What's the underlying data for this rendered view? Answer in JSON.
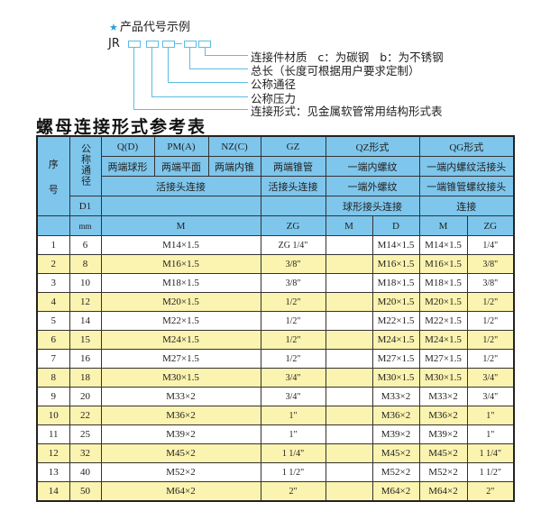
{
  "code_example": {
    "title": "产品代号示例",
    "prefix": "JR",
    "labels": [
      "连接件材质   c：为碳钢   b：为不锈钢",
      "总长（长度可根据用户要求定制）",
      "公称通径",
      "公称压力",
      "连接形式：见金属软管常用结构形式表"
    ]
  },
  "table_title": "螺母连接形式参考表",
  "header": {
    "seq": "序\n\n号",
    "dn": "公称通径",
    "q": "Q(D)",
    "pm": "PM(A)",
    "nz": "NZ(C)",
    "gz": "GZ",
    "qz": "QZ形式",
    "qg": "QG形式",
    "q_desc": "两端球形",
    "pm_desc": "两端平面",
    "nz_desc": "两端内锥",
    "gz_desc": "两端锥管",
    "qz_desc1": "一端内螺纹",
    "qg_desc1": "一端内螺纹活接头",
    "conn": "活接头连接",
    "gz_conn": "活接头连接",
    "qz_desc2": "一端外螺纹",
    "qg_desc2": "一端锥管螺纹接头",
    "d1": "D1",
    "qz_desc3": "球形接头连接",
    "qg_desc3": "连接",
    "mm": "mm",
    "m": "M",
    "zg": "ZG",
    "qz_m": "M",
    "qz_d": "D",
    "qg_m": "M",
    "qg_zg": "ZG"
  },
  "rows": [
    {
      "no": "1",
      "dn": "6",
      "m": "M14×1.5",
      "zg": "ZG 1/4\"",
      "qz_m": "",
      "qz_d": "M14×1.5",
      "qg_m": "M14×1.5",
      "qg_zg": "1/4\""
    },
    {
      "no": "2",
      "dn": "8",
      "m": "M16×1.5",
      "zg": "3/8\"",
      "qz_m": "",
      "qz_d": "M16×1.5",
      "qg_m": "M16×1.5",
      "qg_zg": "3/8\""
    },
    {
      "no": "3",
      "dn": "10",
      "m": "M18×1.5",
      "zg": "3/8\"",
      "qz_m": "",
      "qz_d": "M18×1.5",
      "qg_m": "M18×1.5",
      "qg_zg": "3/8\""
    },
    {
      "no": "4",
      "dn": "12",
      "m": "M20×1.5",
      "zg": "1/2\"",
      "qz_m": "",
      "qz_d": "M20×1.5",
      "qg_m": "M20×1.5",
      "qg_zg": "1/2\""
    },
    {
      "no": "5",
      "dn": "14",
      "m": "M22×1.5",
      "zg": "1/2\"",
      "qz_m": "",
      "qz_d": "M22×1.5",
      "qg_m": "M22×1.5",
      "qg_zg": "1/2\""
    },
    {
      "no": "6",
      "dn": "15",
      "m": "M24×1.5",
      "zg": "1/2\"",
      "qz_m": "",
      "qz_d": "M24×1.5",
      "qg_m": "M24×1.5",
      "qg_zg": "1/2\""
    },
    {
      "no": "7",
      "dn": "16",
      "m": "M27×1.5",
      "zg": "1/2\"",
      "qz_m": "",
      "qz_d": "M27×1.5",
      "qg_m": "M27×1.5",
      "qg_zg": "1/2\""
    },
    {
      "no": "8",
      "dn": "18",
      "m": "M30×1.5",
      "zg": "3/4\"",
      "qz_m": "",
      "qz_d": "M30×1.5",
      "qg_m": "M30×1.5",
      "qg_zg": "3/4\""
    },
    {
      "no": "9",
      "dn": "20",
      "m": "M33×2",
      "zg": "3/4\"",
      "qz_m": "",
      "qz_d": "M33×2",
      "qg_m": "M33×2",
      "qg_zg": "3/4\""
    },
    {
      "no": "10",
      "dn": "22",
      "m": "M36×2",
      "zg": "1\"",
      "qz_m": "",
      "qz_d": "M36×2",
      "qg_m": "M36×2",
      "qg_zg": "1\""
    },
    {
      "no": "11",
      "dn": "25",
      "m": "M39×2",
      "zg": "1\"",
      "qz_m": "",
      "qz_d": "M39×2",
      "qg_m": "M39×2",
      "qg_zg": "1\""
    },
    {
      "no": "12",
      "dn": "32",
      "m": "M45×2",
      "zg": "1 1/4\"",
      "qz_m": "",
      "qz_d": "M45×2",
      "qg_m": "M45×2",
      "qg_zg": "1 1/4\""
    },
    {
      "no": "13",
      "dn": "40",
      "m": "M52×2",
      "zg": "1 1/2\"",
      "qz_m": "",
      "qz_d": "M52×2",
      "qg_m": "M52×2",
      "qg_zg": "1 1/2\""
    },
    {
      "no": "14",
      "dn": "50",
      "m": "M64×2",
      "zg": "2\"",
      "qz_m": "",
      "qz_d": "M64×2",
      "qg_m": "M64×2",
      "qg_zg": "2\""
    }
  ],
  "colors": {
    "header_bg": "#7ec6ec",
    "alt_row_bg": "#fbf3b0",
    "accent": "#5bbde4"
  }
}
